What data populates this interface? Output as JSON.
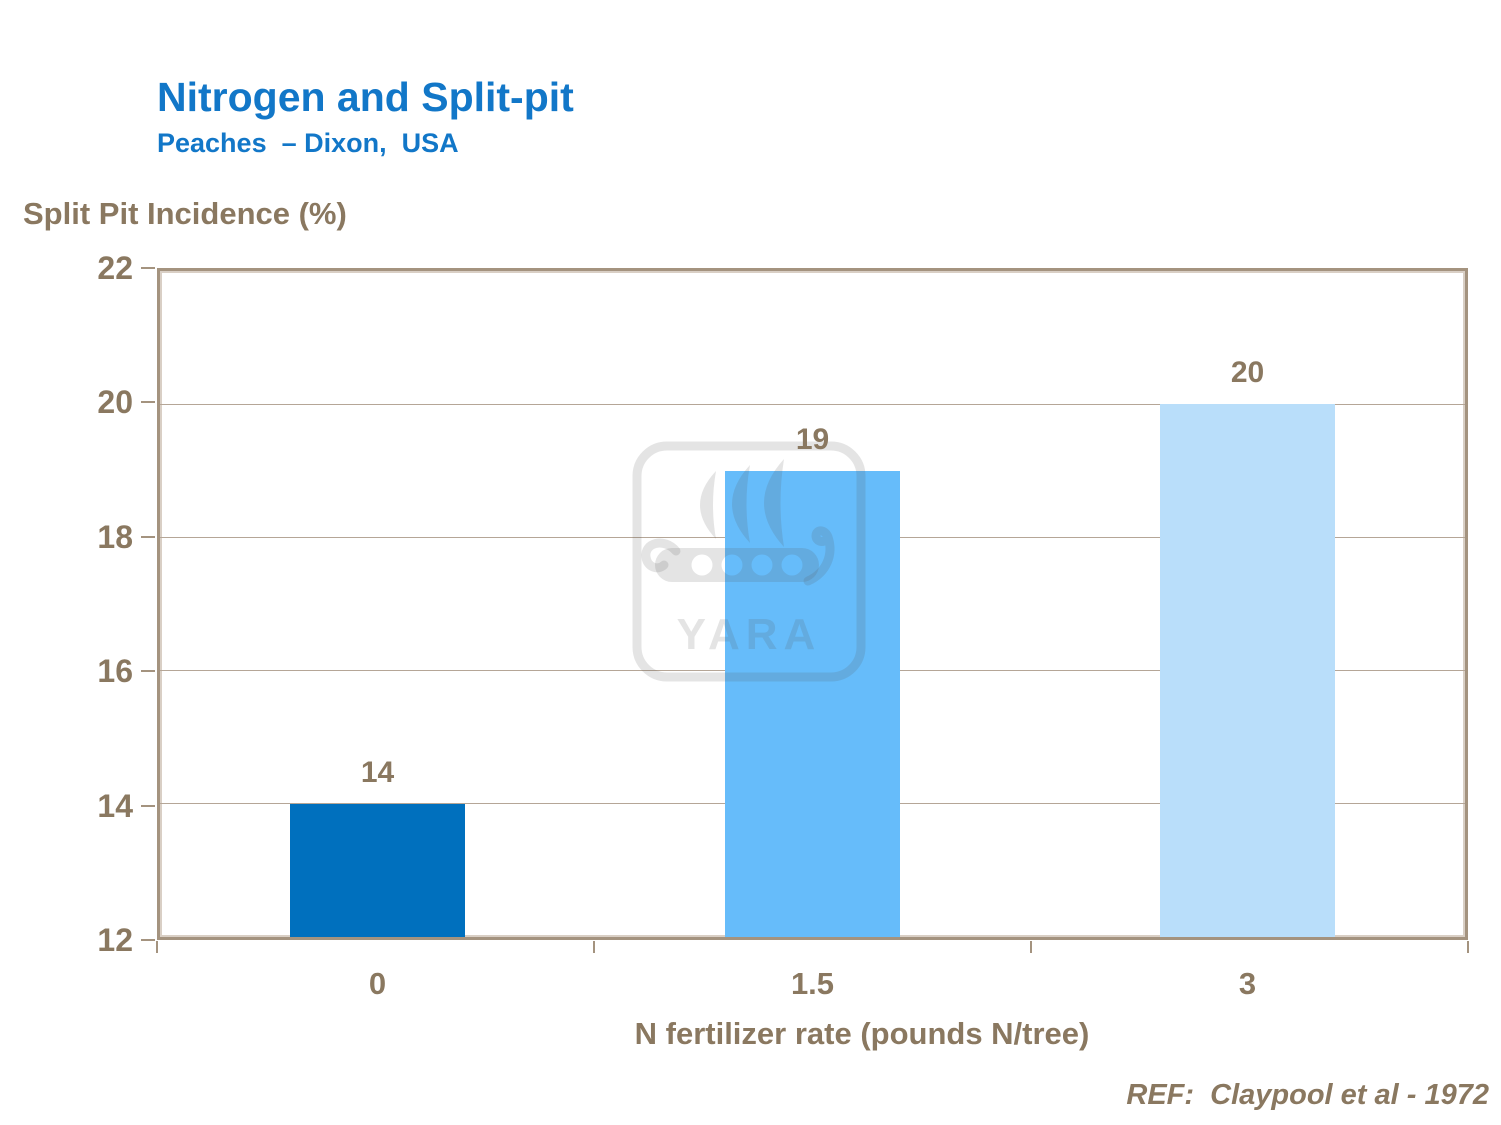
{
  "slide": {
    "title": "Nitrogen and Split-pit",
    "subtitle": "Peaches  – Dixon,  USA",
    "reference": "REF:  Claypool et al - 1972",
    "watermark_text": "YARA"
  },
  "colors": {
    "title_blue": "#1277C8",
    "text_brown": "#8A7860",
    "frame": "#A4937F",
    "frame_light": "#D9CFC5",
    "gridline": "#B5A697",
    "wm": "rgba(90,90,90,0.16)"
  },
  "chart_data": {
    "type": "bar",
    "title": "Nitrogen and Split-pit",
    "subtitle": "Peaches – Dixon, USA",
    "categories": [
      "0",
      "1.5",
      "3"
    ],
    "values": [
      14,
      19,
      20
    ],
    "bar_colors": [
      "#0070BE",
      "#66BCFA",
      "#B9DEFA"
    ],
    "xlabel": "N fertilizer rate (pounds N/tree)",
    "ylabel": "Split Pit Incidence (%)",
    "ylim": [
      12,
      22
    ],
    "yticks": [
      22,
      20,
      18,
      16,
      14,
      12
    ],
    "grid": true,
    "legend_position": "none",
    "annotation": "REF:  Claypool et al - 1972"
  }
}
